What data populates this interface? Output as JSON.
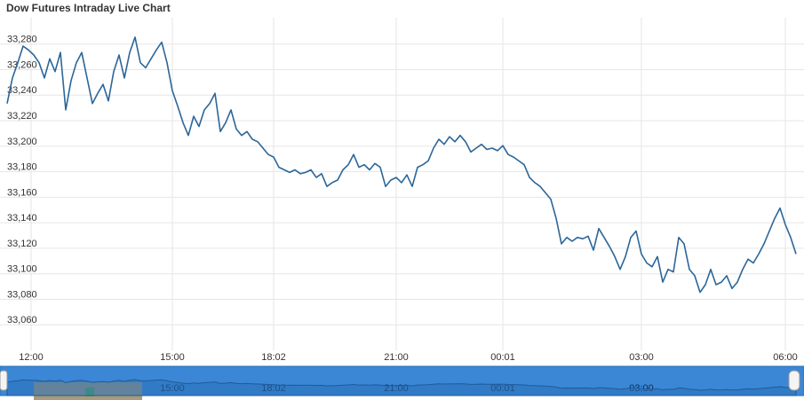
{
  "chart_data": {
    "type": "line",
    "title": "Dow Futures Intraday Live Chart",
    "color": "#2b6699",
    "grid": true,
    "xlim": [
      0,
      148
    ],
    "xticks": [
      {
        "value": 4.5,
        "label": "12:00"
      },
      {
        "value": 31,
        "label": "15:00"
      },
      {
        "value": 50,
        "label": "18:02"
      },
      {
        "value": 73,
        "label": "21:00"
      },
      {
        "value": 93,
        "label": "00:01"
      },
      {
        "value": 119,
        "label": "03:00"
      },
      {
        "value": 146,
        "label": "06:00"
      }
    ],
    "ylim": [
      33040,
      33300
    ],
    "yticks": [
      {
        "value": 33060,
        "label": "33,060"
      },
      {
        "value": 33080,
        "label": "33,080"
      },
      {
        "value": 33100,
        "label": "33,100"
      },
      {
        "value": 33120,
        "label": "33,120"
      },
      {
        "value": 33140,
        "label": "33,140"
      },
      {
        "value": 33160,
        "label": "33,160"
      },
      {
        "value": 33180,
        "label": "33,180"
      },
      {
        "value": 33200,
        "label": "33,200"
      },
      {
        "value": 33220,
        "label": "33,220"
      },
      {
        "value": 33240,
        "label": "33,240"
      },
      {
        "value": 33260,
        "label": "33,260"
      },
      {
        "value": 33280,
        "label": "33,280"
      }
    ],
    "values": [
      33230,
      33250,
      33262,
      33275,
      33272,
      33268,
      33262,
      33250,
      33265,
      33255,
      33270,
      33225,
      33248,
      33262,
      33270,
      33250,
      33230,
      33238,
      33245,
      33232,
      33255,
      33268,
      33250,
      33270,
      33282,
      33262,
      33258,
      33265,
      33272,
      33278,
      33262,
      33240,
      33228,
      33215,
      33205,
      33220,
      33212,
      33225,
      33230,
      33238,
      33208,
      33215,
      33225,
      33210,
      33205,
      33208,
      33202,
      33200,
      33195,
      33190,
      33188,
      33180,
      33178,
      33176,
      33178,
      33175,
      33176,
      33178,
      33172,
      33175,
      33165,
      33168,
      33170,
      33178,
      33182,
      33190,
      33180,
      33182,
      33178,
      33183,
      33180,
      33165,
      33170,
      33172,
      33168,
      33174,
      33165,
      33180,
      33182,
      33185,
      33195,
      33202,
      33198,
      33204,
      33200,
      33205,
      33200,
      33192,
      33195,
      33198,
      33194,
      33195,
      33193,
      33197,
      33190,
      33188,
      33185,
      33182,
      33172,
      33168,
      33165,
      33160,
      33155,
      33140,
      33120,
      33125,
      33122,
      33125,
      33124,
      33126,
      33115,
      33132,
      33125,
      33118,
      33110,
      33100,
      33110,
      33125,
      33130,
      33112,
      33105,
      33102,
      33110,
      33090,
      33100,
      33098,
      33125,
      33120,
      33100,
      33095,
      33082,
      33088,
      33100,
      33088,
      33090,
      33095,
      33085,
      33090,
      33100,
      33108,
      33105,
      33112,
      33120,
      33130,
      33140,
      33148,
      33135,
      33125,
      33112
    ]
  }
}
